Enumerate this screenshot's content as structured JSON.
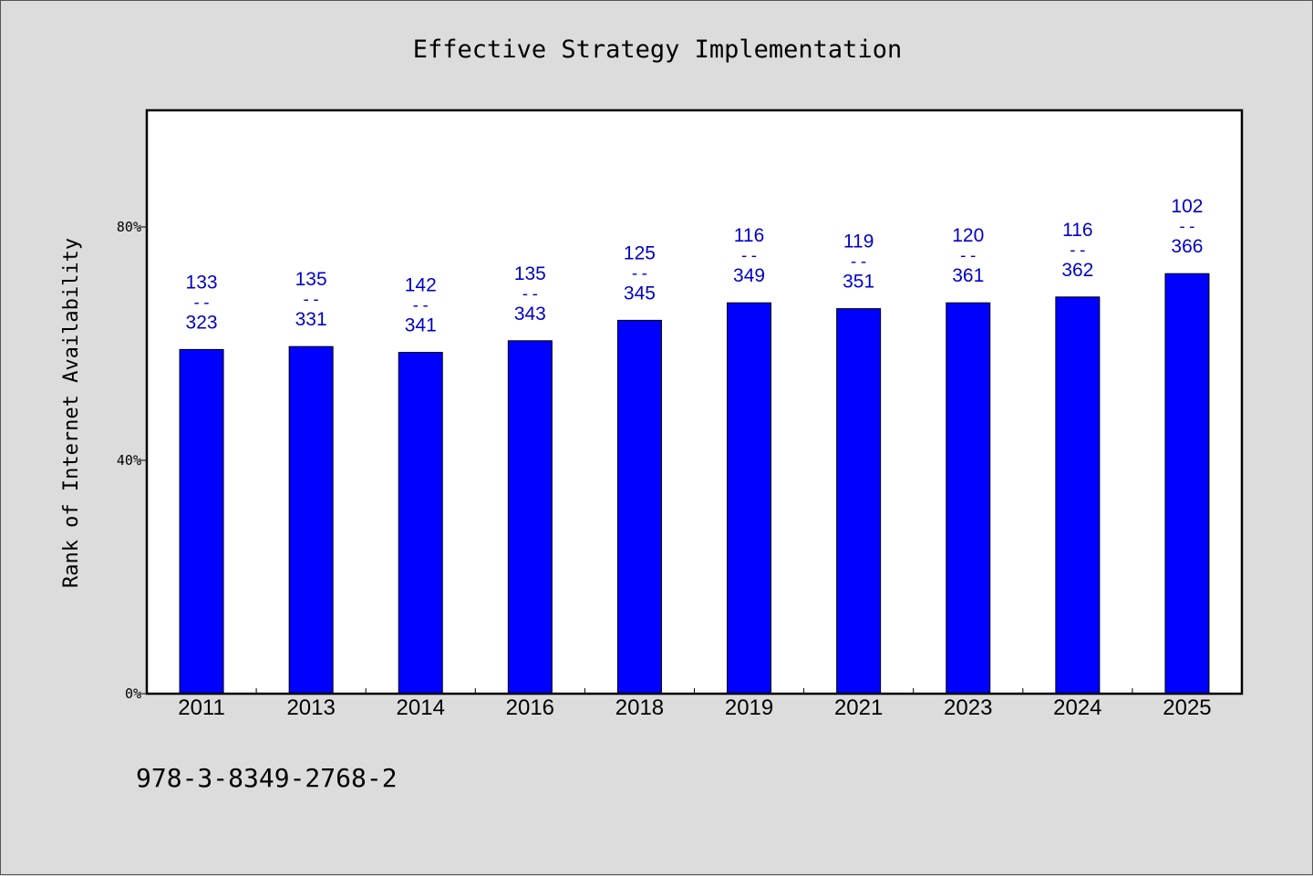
{
  "chart_data": {
    "type": "bar",
    "title": "Effective Strategy Implementation",
    "xlabel": "",
    "ylabel": "Rank of Internet Availability",
    "categories": [
      "2011",
      "2013",
      "2014",
      "2016",
      "2018",
      "2019",
      "2021",
      "2023",
      "2024",
      "2025"
    ],
    "values": [
      0.59,
      0.595,
      0.585,
      0.605,
      0.64,
      0.67,
      0.66,
      0.67,
      0.68,
      0.72
    ],
    "data_labels_top": [
      "133",
      "135",
      "142",
      "135",
      "125",
      "116",
      "119",
      "120",
      "116",
      "102"
    ],
    "data_labels_bottom": [
      "323",
      "331",
      "341",
      "343",
      "345",
      "349",
      "351",
      "361",
      "362",
      "366"
    ],
    "data_label_separator": "--",
    "ylim": [
      0,
      1.0
    ],
    "yticks": [
      0,
      0.4,
      0.8
    ],
    "ytick_labels": [
      "0%",
      "40%",
      "80%"
    ],
    "grid": false,
    "legend": "none",
    "bar_color": "#0000ff",
    "label_color": "#0000cc"
  },
  "footnote": "978-3-8349-2768-2",
  "colors": {
    "background": "#dcdcdc",
    "plot_background": "#ffffff"
  }
}
